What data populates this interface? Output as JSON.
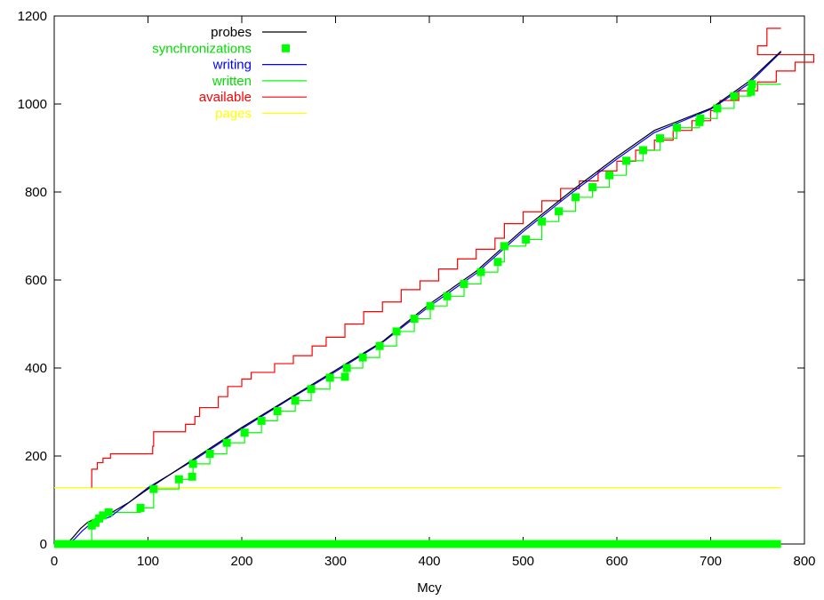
{
  "chart_data": {
    "type": "line",
    "xlabel": "Mcy",
    "ylabel": "",
    "xlim": [
      0,
      800
    ],
    "ylim": [
      0,
      1200
    ],
    "xticks": [
      0,
      100,
      200,
      300,
      400,
      500,
      600,
      700,
      800
    ],
    "yticks": [
      0,
      200,
      400,
      600,
      800,
      1000,
      1200
    ],
    "x_tick_labels": [
      "0",
      "100",
      "200",
      "300",
      "400",
      "500",
      "600",
      "700",
      "800"
    ],
    "y_tick_labels": [
      "0",
      "200",
      "400",
      "600",
      "800",
      "1000",
      "1200"
    ],
    "grid": false,
    "legend_position": "top-left",
    "series": [
      {
        "name": "probes",
        "color": "#000000",
        "style": "line",
        "points": [
          [
            13,
            0
          ],
          [
            20,
            15
          ],
          [
            28,
            35
          ],
          [
            36,
            50
          ],
          [
            45,
            58
          ],
          [
            60,
            70
          ],
          [
            80,
            95
          ],
          [
            100,
            125
          ],
          [
            150,
            195
          ],
          [
            200,
            265
          ],
          [
            250,
            330
          ],
          [
            300,
            395
          ],
          [
            350,
            460
          ],
          [
            400,
            545
          ],
          [
            450,
            620
          ],
          [
            500,
            715
          ],
          [
            550,
            800
          ],
          [
            600,
            880
          ],
          [
            640,
            940
          ],
          [
            700,
            990
          ],
          [
            740,
            1050
          ],
          [
            775,
            1120
          ]
        ]
      },
      {
        "name": "synchronizations",
        "color": "#00ff00",
        "style": "markers",
        "points": [
          [
            40,
            42
          ],
          [
            44,
            48
          ],
          [
            48,
            58
          ],
          [
            52,
            65
          ],
          [
            58,
            72
          ],
          [
            92,
            82
          ],
          [
            106,
            125
          ],
          [
            133,
            147
          ],
          [
            147,
            153
          ],
          [
            148,
            182
          ],
          [
            166,
            205
          ],
          [
            184,
            230
          ],
          [
            203,
            253
          ],
          [
            221,
            280
          ],
          [
            238,
            302
          ],
          [
            257,
            326
          ],
          [
            274,
            352
          ],
          [
            294,
            378
          ],
          [
            310,
            380
          ],
          [
            312,
            400
          ],
          [
            329,
            424
          ],
          [
            347,
            450
          ],
          [
            365,
            483
          ],
          [
            384,
            512
          ],
          [
            401,
            541
          ],
          [
            419,
            563
          ],
          [
            437,
            591
          ],
          [
            455,
            618
          ],
          [
            473,
            641
          ],
          [
            480,
            677
          ],
          [
            503,
            692
          ],
          [
            520,
            733
          ],
          [
            538,
            756
          ],
          [
            556,
            788
          ],
          [
            574,
            811
          ],
          [
            592,
            838
          ],
          [
            610,
            871
          ],
          [
            628,
            895
          ],
          [
            646,
            922
          ],
          [
            664,
            946
          ],
          [
            688,
            959
          ],
          [
            689,
            967
          ],
          [
            707,
            990
          ],
          [
            725,
            1018
          ],
          [
            743,
            1028
          ],
          [
            744,
            1045
          ]
        ]
      },
      {
        "name": "writing",
        "color": "#0000ff",
        "style": "line",
        "points": [
          [
            14,
            0
          ],
          [
            22,
            12
          ],
          [
            30,
            30
          ],
          [
            40,
            48
          ],
          [
            60,
            62
          ],
          [
            80,
            95
          ],
          [
            100,
            128
          ],
          [
            150,
            192
          ],
          [
            200,
            262
          ],
          [
            250,
            328
          ],
          [
            300,
            392
          ],
          [
            350,
            458
          ],
          [
            400,
            540
          ],
          [
            450,
            615
          ],
          [
            500,
            710
          ],
          [
            550,
            795
          ],
          [
            600,
            875
          ],
          [
            640,
            935
          ],
          [
            700,
            988
          ],
          [
            740,
            1045
          ],
          [
            775,
            1118
          ]
        ]
      },
      {
        "name": "written",
        "color": "#00ff00",
        "style": "step",
        "points": [
          [
            40,
            0
          ],
          [
            40,
            42
          ],
          [
            44,
            48
          ],
          [
            48,
            58
          ],
          [
            52,
            65
          ],
          [
            58,
            72
          ],
          [
            92,
            82
          ],
          [
            106,
            125
          ],
          [
            133,
            147
          ],
          [
            147,
            153
          ],
          [
            148,
            182
          ],
          [
            166,
            205
          ],
          [
            184,
            230
          ],
          [
            203,
            253
          ],
          [
            221,
            280
          ],
          [
            238,
            302
          ],
          [
            257,
            326
          ],
          [
            274,
            352
          ],
          [
            294,
            378
          ],
          [
            310,
            380
          ],
          [
            312,
            400
          ],
          [
            329,
            424
          ],
          [
            347,
            450
          ],
          [
            365,
            483
          ],
          [
            384,
            512
          ],
          [
            401,
            541
          ],
          [
            419,
            563
          ],
          [
            437,
            591
          ],
          [
            455,
            618
          ],
          [
            473,
            641
          ],
          [
            480,
            677
          ],
          [
            503,
            692
          ],
          [
            520,
            733
          ],
          [
            538,
            756
          ],
          [
            556,
            788
          ],
          [
            574,
            811
          ],
          [
            592,
            838
          ],
          [
            610,
            871
          ],
          [
            628,
            895
          ],
          [
            646,
            922
          ],
          [
            664,
            946
          ],
          [
            688,
            959
          ],
          [
            689,
            967
          ],
          [
            707,
            990
          ],
          [
            725,
            1018
          ],
          [
            743,
            1028
          ],
          [
            744,
            1045
          ],
          [
            775,
            1045
          ]
        ]
      },
      {
        "name": "available",
        "color": "#ff0000",
        "style": "step",
        "points": [
          [
            40,
            128
          ],
          [
            40,
            170
          ],
          [
            46,
            185
          ],
          [
            52,
            195
          ],
          [
            60,
            205
          ],
          [
            105,
            222
          ],
          [
            106,
            255
          ],
          [
            140,
            272
          ],
          [
            150,
            290
          ],
          [
            155,
            310
          ],
          [
            175,
            335
          ],
          [
            185,
            358
          ],
          [
            200,
            375
          ],
          [
            210,
            390
          ],
          [
            235,
            410
          ],
          [
            255,
            428
          ],
          [
            275,
            450
          ],
          [
            290,
            470
          ],
          [
            310,
            500
          ],
          [
            330,
            528
          ],
          [
            350,
            550
          ],
          [
            370,
            578
          ],
          [
            390,
            598
          ],
          [
            410,
            625
          ],
          [
            430,
            648
          ],
          [
            450,
            670
          ],
          [
            470,
            695
          ],
          [
            480,
            728
          ],
          [
            500,
            755
          ],
          [
            520,
            780
          ],
          [
            540,
            808
          ],
          [
            560,
            825
          ],
          [
            580,
            848
          ],
          [
            600,
            870
          ],
          [
            620,
            895
          ],
          [
            640,
            918
          ],
          [
            660,
            940
          ],
          [
            680,
            962
          ],
          [
            700,
            985
          ],
          [
            710,
            1008
          ],
          [
            730,
            1030
          ],
          [
            750,
            1050
          ],
          [
            770,
            1075
          ],
          [
            790,
            1095
          ],
          [
            810,
            1112
          ],
          [
            750,
            1132
          ],
          [
            760,
            1172
          ],
          [
            775,
            1172
          ]
        ]
      },
      {
        "name": "pages",
        "color": "#ffff00",
        "style": "line",
        "points": [
          [
            0,
            128
          ],
          [
            775,
            128
          ]
        ]
      }
    ],
    "baseline_band": {
      "color": "#00ff00",
      "y": 0,
      "x_range": [
        0,
        775
      ]
    }
  }
}
